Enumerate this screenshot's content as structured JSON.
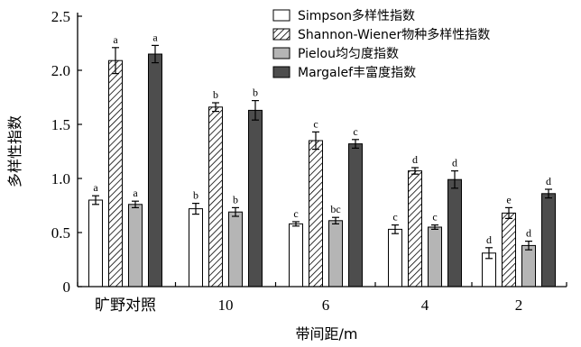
{
  "chart_data": {
    "type": "bar",
    "title": "",
    "xlabel": "带间距/m",
    "ylabel": "多样性指数",
    "ylim": [
      0,
      2.5
    ],
    "yticks": [
      0,
      0.5,
      1.0,
      1.5,
      2.0,
      2.5
    ],
    "ytick_labels": [
      "0",
      "0.5",
      "1.0",
      "1.5",
      "2.0",
      "2.5"
    ],
    "categories": [
      "旷野对照",
      "10",
      "6",
      "4",
      "2"
    ],
    "legend_position": "top-right",
    "grid": false,
    "series": [
      {
        "name": "Simpson多样性指数",
        "style": "white",
        "values": [
          0.8,
          0.72,
          0.58,
          0.53,
          0.31
        ],
        "errors": [
          0.04,
          0.05,
          0.02,
          0.04,
          0.05
        ],
        "labels": [
          "a",
          "b",
          "c",
          "c",
          "d"
        ]
      },
      {
        "name": "Shannon-Wiener物种多样性指数",
        "style": "hatched",
        "values": [
          2.09,
          1.66,
          1.35,
          1.07,
          0.68
        ],
        "errors": [
          0.12,
          0.04,
          0.08,
          0.03,
          0.05
        ],
        "labels": [
          "a",
          "b",
          "c",
          "d",
          "e"
        ]
      },
      {
        "name": "Pielou均匀度指数",
        "style": "lightgray",
        "values": [
          0.76,
          0.69,
          0.61,
          0.55,
          0.38
        ],
        "errors": [
          0.03,
          0.04,
          0.03,
          0.02,
          0.04
        ],
        "labels": [
          "a",
          "b",
          "bc",
          "c",
          "d"
        ]
      },
      {
        "name": "Margalef丰富度指数",
        "style": "darkgray",
        "values": [
          2.15,
          1.63,
          1.32,
          0.99,
          0.86
        ],
        "errors": [
          0.08,
          0.09,
          0.04,
          0.08,
          0.04
        ],
        "labels": [
          "a",
          "b",
          "c",
          "d",
          "d"
        ]
      }
    ]
  },
  "colors": {
    "white": "#ffffff",
    "lightgray": "#b5b5b5",
    "darkgray": "#4d4d4d",
    "hatch": "#000000",
    "axis": "#000000"
  }
}
